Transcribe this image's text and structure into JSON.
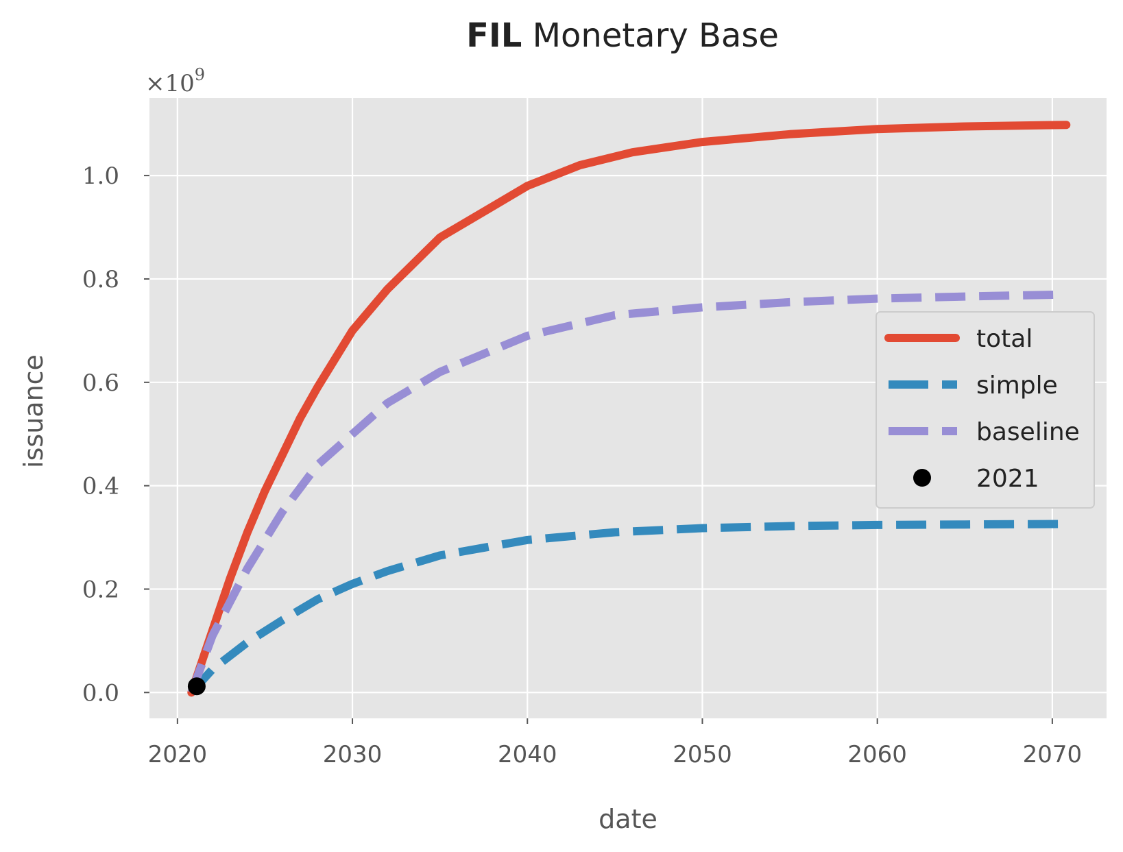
{
  "chart_data": {
    "type": "line",
    "title_bold": "FIL",
    "title_rest": " Monetary Base",
    "xlabel": "date",
    "ylabel": "issuance",
    "y_multiplier_base": "×10",
    "y_multiplier_exp": "9",
    "xlim": [
      2018.4,
      2073.1
    ],
    "ylim": [
      -0.05,
      1.15
    ],
    "x_ticks": [
      2020,
      2030,
      2040,
      2050,
      2060,
      2070
    ],
    "x_tick_labels": [
      "2020",
      "2030",
      "2040",
      "2050",
      "2060",
      "2070"
    ],
    "y_ticks": [
      0.0,
      0.2,
      0.4,
      0.6,
      0.8,
      1.0
    ],
    "y_tick_labels": [
      "0.0",
      "0.2",
      "0.4",
      "0.6",
      "0.8",
      "1.0"
    ],
    "grid": true,
    "legend_position": "center-right",
    "series": [
      {
        "name": "total",
        "style": "solid",
        "color": "#E24A33",
        "x": [
          2020.8,
          2021.5,
          2022,
          2023,
          2024,
          2025,
          2026,
          2027,
          2028,
          2030,
          2032,
          2035,
          2038,
          2040,
          2043,
          2046,
          2050,
          2055,
          2060,
          2065,
          2070.8
        ],
        "y": [
          0.0,
          0.07,
          0.12,
          0.22,
          0.31,
          0.39,
          0.46,
          0.53,
          0.59,
          0.7,
          0.78,
          0.88,
          0.94,
          0.98,
          1.02,
          1.045,
          1.065,
          1.08,
          1.09,
          1.095,
          1.098
        ]
      },
      {
        "name": "simple",
        "style": "dashed",
        "color": "#348ABD",
        "x": [
          2020.8,
          2022,
          2024,
          2026,
          2028,
          2030,
          2032,
          2035,
          2040,
          2045,
          2050,
          2055,
          2060,
          2065,
          2070.8
        ],
        "y": [
          0.0,
          0.045,
          0.097,
          0.14,
          0.18,
          0.21,
          0.235,
          0.265,
          0.295,
          0.31,
          0.318,
          0.322,
          0.324,
          0.325,
          0.326
        ]
      },
      {
        "name": "baseline",
        "style": "dashed",
        "color": "#988ED5",
        "x": [
          2020.8,
          2022,
          2024,
          2026,
          2028,
          2030,
          2032,
          2035,
          2040,
          2045,
          2050,
          2055,
          2060,
          2065,
          2070.8
        ],
        "y": [
          0.0,
          0.11,
          0.24,
          0.35,
          0.44,
          0.5,
          0.56,
          0.62,
          0.69,
          0.73,
          0.745,
          0.755,
          0.762,
          0.766,
          0.77
        ]
      }
    ],
    "markers": [
      {
        "name": "2021",
        "x": 2021.1,
        "y": 0.012,
        "color": "#000000"
      }
    ]
  }
}
